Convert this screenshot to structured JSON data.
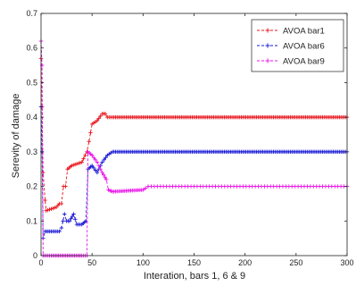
{
  "chart_data": {
    "type": "line",
    "xlabel": "Interation, bars 1, 6 & 9",
    "ylabel": "Serevity of damage",
    "xlim": [
      0,
      300
    ],
    "ylim": [
      0,
      0.7
    ],
    "xticks": [
      0,
      50,
      100,
      150,
      200,
      250,
      300
    ],
    "yticks": [
      0,
      0.1,
      0.2,
      0.3,
      0.4,
      0.5,
      0.6,
      0.7
    ],
    "grid": false,
    "legend_position": "top-right",
    "series": [
      {
        "name": "AVOA bar1",
        "color": "#e8141c",
        "marker": "plus",
        "points": [
          [
            0,
            0.57
          ],
          [
            1,
            0.43
          ],
          [
            2,
            0.24
          ],
          [
            4,
            0.16
          ],
          [
            5,
            0.13
          ],
          [
            10,
            0.135
          ],
          [
            15,
            0.14
          ],
          [
            18,
            0.15
          ],
          [
            20,
            0.15
          ],
          [
            22,
            0.2
          ],
          [
            24,
            0.2
          ],
          [
            26,
            0.25
          ],
          [
            30,
            0.26
          ],
          [
            35,
            0.265
          ],
          [
            40,
            0.27
          ],
          [
            45,
            0.3
          ],
          [
            47,
            0.33
          ],
          [
            50,
            0.38
          ],
          [
            55,
            0.39
          ],
          [
            60,
            0.41
          ],
          [
            63,
            0.41
          ],
          [
            65,
            0.4
          ],
          [
            70,
            0.4
          ],
          [
            300,
            0.4
          ]
        ]
      },
      {
        "name": "AVOA bar6",
        "color": "#1a1ad6",
        "marker": "plus",
        "points": [
          [
            0,
            0.43
          ],
          [
            1,
            0.3
          ],
          [
            2,
            0.05
          ],
          [
            4,
            0.07
          ],
          [
            10,
            0.07
          ],
          [
            18,
            0.07
          ],
          [
            20,
            0.08
          ],
          [
            23,
            0.12
          ],
          [
            25,
            0.1
          ],
          [
            28,
            0.1
          ],
          [
            32,
            0.12
          ],
          [
            35,
            0.09
          ],
          [
            40,
            0.09
          ],
          [
            44,
            0.1
          ],
          [
            46,
            0.25
          ],
          [
            50,
            0.26
          ],
          [
            55,
            0.24
          ],
          [
            60,
            0.27
          ],
          [
            65,
            0.29
          ],
          [
            70,
            0.3
          ],
          [
            300,
            0.3
          ]
        ]
      },
      {
        "name": "AVOA bar9",
        "color": "#ea14ea",
        "marker": "plus",
        "points": [
          [
            0,
            0.62
          ],
          [
            1,
            0.55
          ],
          [
            2,
            0
          ],
          [
            10,
            0
          ],
          [
            20,
            0
          ],
          [
            30,
            0
          ],
          [
            40,
            0
          ],
          [
            45,
            0
          ],
          [
            46,
            0.3
          ],
          [
            50,
            0.29
          ],
          [
            55,
            0.27
          ],
          [
            60,
            0.24
          ],
          [
            64,
            0.22
          ],
          [
            66,
            0.19
          ],
          [
            70,
            0.185
          ],
          [
            100,
            0.19
          ],
          [
            105,
            0.2
          ],
          [
            300,
            0.2
          ]
        ]
      }
    ]
  }
}
